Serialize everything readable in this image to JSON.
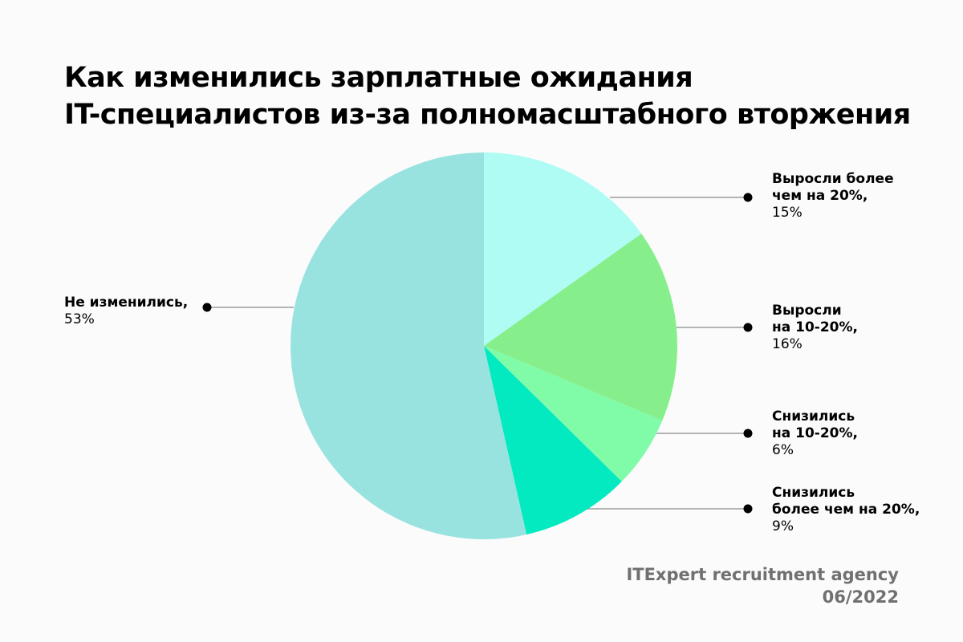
{
  "title": {
    "line1": "Как изменились зарплатные ожидания",
    "line2": "IT-специалистов из-за полномасштабного вторжения"
  },
  "labels": [
    {
      "name": "Выросли более\nчем на 20%,",
      "pct": "15%"
    },
    {
      "name": "Выросли\nна 10-20%,",
      "pct": "16%"
    },
    {
      "name": "Снизились\nна 10-20%,",
      "pct": "6%"
    },
    {
      "name": "Снизились\nболее чем на 20%,",
      "pct": "9%"
    },
    {
      "name": "Не изменились,",
      "pct": "53%"
    }
  ],
  "footer": {
    "source": "ITExpert recruitment agency",
    "date": "06/2022"
  },
  "chart_data": {
    "type": "pie",
    "title": "Как изменились зарплатные ожидания IT-специалистов из-за полномасштабного вторжения",
    "categories": [
      "Выросли более чем на 20%",
      "Выросли на 10-20%",
      "Снизились на 10-20%",
      "Снизились более чем на 20%",
      "Не изменились"
    ],
    "values": [
      15,
      16,
      6,
      9,
      53
    ],
    "unit": "%",
    "colors": [
      "#aefcf4",
      "#86ef8c",
      "#80fba8",
      "#03eac0",
      "#98e3e0"
    ],
    "start_angle": "12 o'clock, clockwise",
    "legend": "callout labels with leader lines",
    "source": "ITExpert recruitment agency, 06/2022"
  }
}
